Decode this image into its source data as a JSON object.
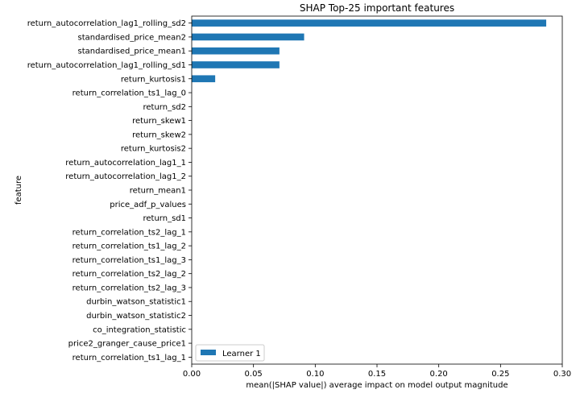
{
  "chart_data": {
    "type": "bar",
    "orientation": "horizontal",
    "title": "SHAP Top-25 important features",
    "xlabel": "mean(|SHAP value|) average impact on model output magnitude",
    "ylabel": "feature",
    "xlim": [
      0,
      0.3
    ],
    "x_ticks": [
      "0.00",
      "0.05",
      "0.10",
      "0.15",
      "0.20",
      "0.25",
      "0.30"
    ],
    "grid": false,
    "legend_position": "lower-left",
    "categories": [
      "return_autocorrelation_lag1_rolling_sd2",
      "standardised_price_mean2",
      "standardised_price_mean1",
      "return_autocorrelation_lag1_rolling_sd1",
      "return_kurtosis1",
      "return_correlation_ts1_lag_0",
      "return_sd2",
      "return_skew1",
      "return_skew2",
      "return_kurtosis2",
      "return_autocorrelation_lag1_1",
      "return_autocorrelation_lag1_2",
      "return_mean1",
      "price_adf_p_values",
      "return_sd1",
      "return_correlation_ts2_lag_1",
      "return_correlation_ts1_lag_2",
      "return_correlation_ts1_lag_3",
      "return_correlation_ts2_lag_2",
      "return_correlation_ts2_lag_3",
      "durbin_watson_statistic1",
      "durbin_watson_statistic2",
      "co_integration_statistic",
      "price2_granger_cause_price1",
      "return_correlation_ts1_lag_1"
    ],
    "series": [
      {
        "name": "Learner 1",
        "color": "#1f77b4",
        "values": [
          0.287,
          0.091,
          0.071,
          0.071,
          0.019,
          0,
          0,
          0,
          0,
          0,
          0,
          0,
          0,
          0,
          0,
          0,
          0,
          0,
          0,
          0,
          0,
          0,
          0,
          0,
          0
        ]
      }
    ]
  }
}
